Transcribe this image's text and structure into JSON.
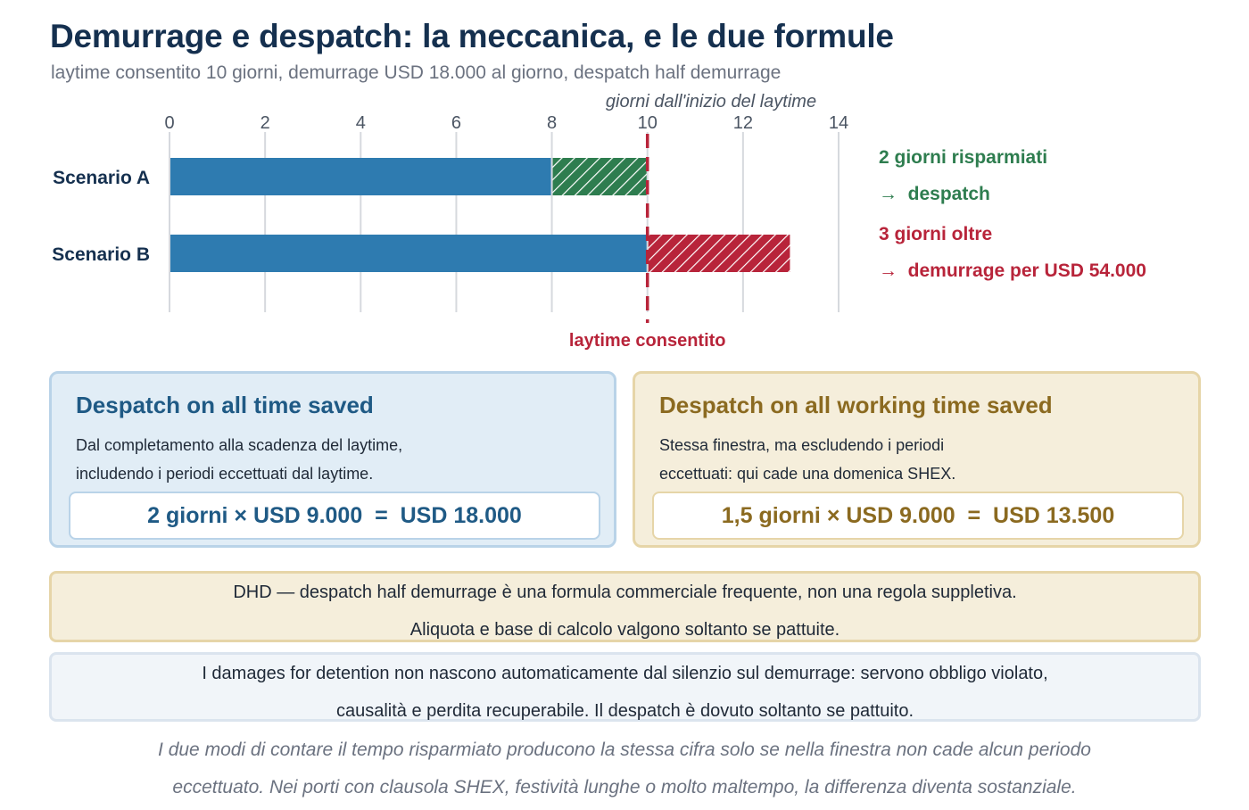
{
  "header": {
    "title": "Demurrage e despatch: la meccanica, e le due formule",
    "subtitle": "laytime consentito 10 giorni, demurrage USD 18.000 al giorno, despatch half demurrage"
  },
  "chart_data": {
    "type": "bar",
    "orientation": "horizontal",
    "stacked": true,
    "xlabel": "giorni dall'inizio del laytime",
    "xlim": [
      0,
      14
    ],
    "xticks": [
      0,
      2,
      4,
      6,
      8,
      10,
      12,
      14
    ],
    "tick_position": "top",
    "grid": true,
    "categories": [
      "Scenario A",
      "Scenario B"
    ],
    "series": [
      {
        "role": "time-used",
        "values": [
          8,
          10
        ],
        "color": "#2e7bb0",
        "pattern": "solid"
      },
      {
        "role": "saved",
        "values": [
          2,
          0
        ],
        "color": "#2e7d4f",
        "pattern": "hatched"
      },
      {
        "role": "overrun",
        "values": [
          0,
          3
        ],
        "color": "#b8243a",
        "pattern": "hatched"
      }
    ],
    "reference_line": {
      "value": 10,
      "label": "laytime consentito",
      "color": "#b8243a",
      "style": "dashed"
    },
    "annotations": [
      {
        "scenario": "Scenario A",
        "line1": "2 giorni risparmiati",
        "line2": "→  despatch",
        "color": "#2e7d4f"
      },
      {
        "scenario": "Scenario B",
        "line1": "3 giorni oltre",
        "line2": "→  demurrage per USD 54.000",
        "color": "#b8243a"
      }
    ]
  },
  "cards": {
    "all_time": {
      "heading": "Despatch on all time saved",
      "text_line1": "Dal completamento alla scadenza del laytime,",
      "text_line2": "includendo i periodi eccettuati dal laytime.",
      "formula": "2 giorni × USD 9.000  =  USD 18.000"
    },
    "working_time": {
      "heading": "Despatch on all working time saved",
      "text_line1": "Stessa finestra, ma escludendo i periodi",
      "text_line2": "eccettuati: qui cade una domenica SHEX.",
      "formula": "1,5 giorni × USD 9.000  =  USD 13.500"
    }
  },
  "notes": {
    "dhd_line1": "DHD — despatch half demurrage è una formula commerciale frequente, non una regola suppletiva.",
    "dhd_line2": "Aliquota e base di calcolo valgono soltanto se pattuite.",
    "damages_line1": "I damages for detention non nascono automaticamente dal silenzio sul demurrage: servono obbligo violato,",
    "damages_line2": "causalità e perdita recuperabile. Il despatch è dovuto soltanto se pattuito."
  },
  "footer": {
    "line1": "I due modi di contare il tempo risparmiato producono la stessa cifra solo se nella finestra non cade alcun periodo",
    "line2": "eccettuato. Nei porti con clausola SHEX, festività lunghe o molto maltempo, la differenza diventa sostanziale."
  }
}
